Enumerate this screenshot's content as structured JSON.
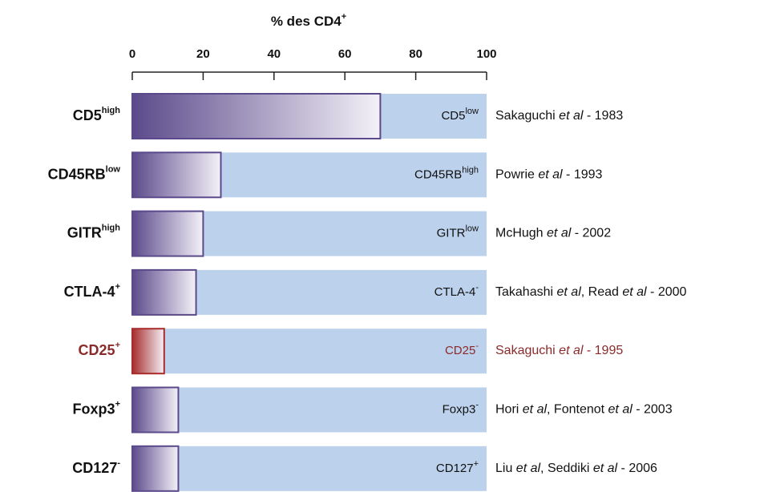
{
  "chart_data": {
    "type": "bar",
    "orientation": "horizontal",
    "title": "% des CD4",
    "title_superscript": "+",
    "categories": [
      "CD5",
      "CD45RB",
      "GITR",
      "CTLA-4",
      "CD25",
      "Foxp3",
      "CD127"
    ],
    "category_superscripts": [
      "high",
      "low",
      "high",
      "+",
      "+",
      "+",
      "-"
    ],
    "complement_labels": [
      "CD5",
      "CD45RB",
      "GITR",
      "CTLA-4",
      "CD25",
      "Foxp3",
      "CD127"
    ],
    "complement_superscripts": [
      "low",
      "high",
      "low",
      "-",
      "-",
      "-",
      "+"
    ],
    "references": [
      [
        "Sakaguchi ",
        "et al",
        " - 1983"
      ],
      [
        "Powrie ",
        "et al",
        " - 1993"
      ],
      [
        "McHugh ",
        "et al",
        " - 2002"
      ],
      [
        "Takahashi ",
        "et al",
        ", Read ",
        "et al",
        " - 2000"
      ],
      [
        "Sakaguchi ",
        "et al",
        " - 1995"
      ],
      [
        "Hori ",
        "et al",
        ", Fontenot ",
        "et al",
        " - 2003"
      ],
      [
        "Liu ",
        "et al",
        ", Seddiki ",
        "et al",
        " - 2006"
      ]
    ],
    "values": [
      70,
      25,
      20,
      18,
      9,
      13,
      13
    ],
    "colors": [
      "#5b4a8b",
      "#5b4a8b",
      "#5b4a8b",
      "#5b4a8b",
      "#a82c2c",
      "#5b4a8b",
      "#5b4a8b"
    ],
    "label_colors": [
      "#111111",
      "#111111",
      "#111111",
      "#111111",
      "#8b2a2a",
      "#111111",
      "#111111"
    ],
    "background_color": "#bcd1ec",
    "xlim": [
      0,
      100
    ],
    "xticks": [
      0,
      20,
      40,
      60,
      80,
      100
    ]
  }
}
